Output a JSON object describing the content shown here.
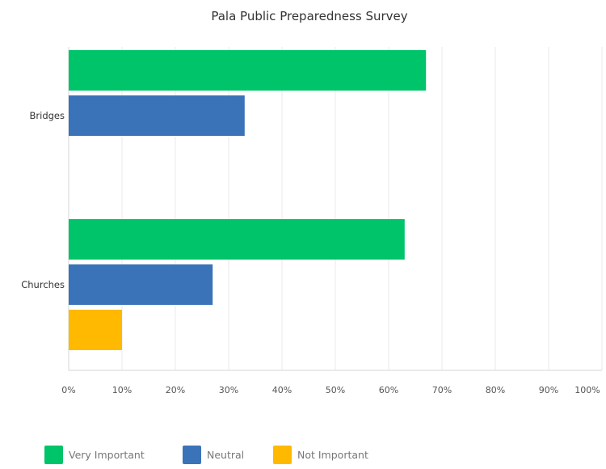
{
  "chart_data": {
    "type": "bar",
    "orientation": "horizontal",
    "title": "Pala Public Preparedness Survey",
    "categories": [
      "Bridges",
      "Churches"
    ],
    "series": [
      {
        "name": "Very Important",
        "values": [
          67,
          63
        ],
        "color": "#00c46a"
      },
      {
        "name": "Neutral",
        "values": [
          33,
          27
        ],
        "color": "#3b73b9"
      },
      {
        "name": "Not Important",
        "values": [
          0,
          10
        ],
        "color": "#ffb900"
      }
    ],
    "xlim": [
      0,
      100
    ],
    "xticks": [
      "0%",
      "10%",
      "20%",
      "30%",
      "40%",
      "50%",
      "60%",
      "70%",
      "80%",
      "90%",
      "100%"
    ],
    "grid": true,
    "legend_position": "bottom-left"
  }
}
